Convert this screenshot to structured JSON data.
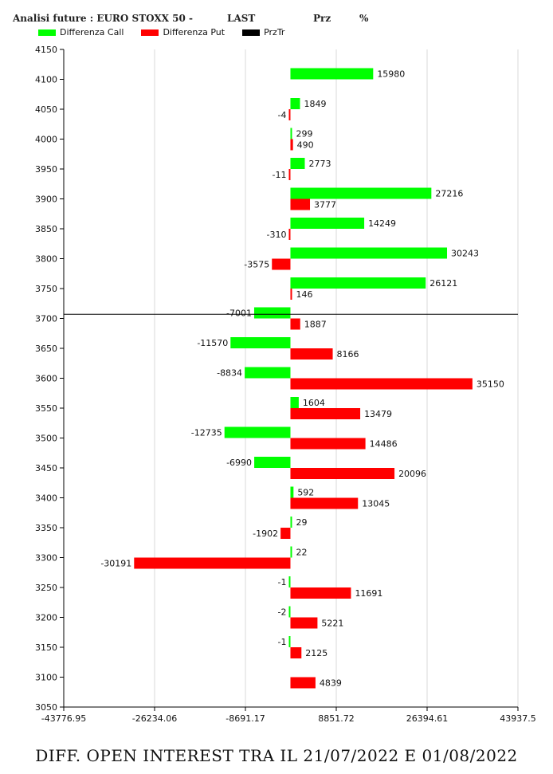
{
  "header": {
    "title": "Analisi future : EURO STOXX 50 -",
    "col_last": "LAST",
    "col_prz": "Prz",
    "col_pct": "%"
  },
  "legend": [
    {
      "label": "Differenza Call",
      "color": "#00ff00"
    },
    {
      "label": "Differenza Put",
      "color": "#ff0000"
    },
    {
      "label": "PrzTr",
      "color": "#000000"
    }
  ],
  "caption": "DIFF. OPEN INTEREST TRA IL 21/07/2022 E 01/08/2022",
  "chart_data": {
    "type": "bar",
    "orientation": "horizontal",
    "title": "Analisi future : EURO STOXX 50 -",
    "categories": [
      4100,
      4050,
      4000,
      3950,
      3900,
      3850,
      3800,
      3750,
      3700,
      3650,
      3600,
      3550,
      3500,
      3450,
      3400,
      3350,
      3300,
      3250,
      3200,
      3150,
      3100
    ],
    "series": [
      {
        "name": "Differenza Call",
        "color": "#00ff00",
        "values": [
          15980,
          1849,
          299,
          2773,
          27216,
          14249,
          30243,
          26121,
          -7001,
          -11570,
          -8834,
          1604,
          -12735,
          -6990,
          592,
          29,
          22,
          -1,
          -2,
          -1,
          null
        ]
      },
      {
        "name": "Differenza Put",
        "color": "#ff0000",
        "values": [
          null,
          -4,
          490,
          -11,
          3777,
          -310,
          -3575,
          146,
          1887,
          8166,
          35150,
          13479,
          14486,
          20096,
          13045,
          -1902,
          -30191,
          11691,
          5221,
          2125,
          4839
        ]
      }
    ],
    "price_line": {
      "name": "PrzTr",
      "y": 3707,
      "color": "#000000"
    },
    "ylim": [
      3050,
      4150
    ],
    "yticks": [
      4150,
      4100,
      4050,
      4000,
      3950,
      3900,
      3850,
      3800,
      3750,
      3700,
      3650,
      3600,
      3550,
      3500,
      3450,
      3400,
      3350,
      3300,
      3250,
      3200,
      3150,
      3100,
      3050
    ],
    "xlim": [
      -43776.95,
      43937.5
    ],
    "xticks": [
      -43776.95,
      -26234.06,
      -8691.17,
      8851.72,
      26394.61,
      43937.5
    ],
    "xtick_labels": [
      "-43776.95",
      "-26234.06",
      "-8691.17",
      "8851.72",
      "26394.61",
      "43937.5"
    ],
    "grid": "vertical"
  }
}
